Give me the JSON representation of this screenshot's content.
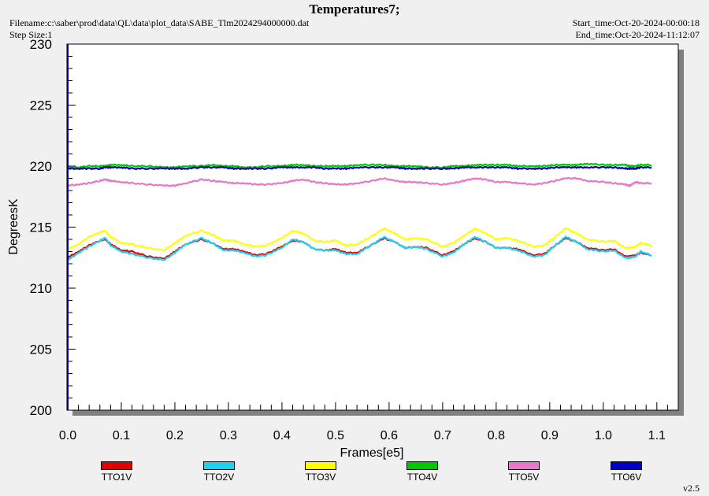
{
  "header": {
    "title": "Temperatures7;",
    "filename": "Filename:c:\\saber\\prod\\data\\QL\\data\\plot_data\\SABE_Tlm2024294000000.dat",
    "step_size": "Step Size:1",
    "start_time": "Start_time:Oct-20-2024-00:00:18",
    "end_time": "End_time:Oct-20-2024-11:12:07"
  },
  "version": "v2.5",
  "colors": {
    "background": "#f0f0f0",
    "plot_bg": "#ffffff",
    "shadow": "#808080",
    "axis": "#00008b"
  },
  "chart_data": {
    "type": "line",
    "title": "Temperatures7;",
    "xlabel": "Frames[e5]",
    "ylabel": "DegreesK",
    "xlim": [
      0.0,
      1.14
    ],
    "ylim": [
      200,
      230
    ],
    "xticks": [
      "0.0",
      "0.1",
      "0.2",
      "0.3",
      "0.4",
      "0.5",
      "0.6",
      "0.7",
      "0.8",
      "0.9",
      "1.0",
      "1.1"
    ],
    "yticks": [
      "200",
      "205",
      "210",
      "215",
      "220",
      "225",
      "230"
    ],
    "grid": false,
    "legend_position": "bottom",
    "x": [
      0.0,
      0.02,
      0.04,
      0.06,
      0.07,
      0.08,
      0.1,
      0.12,
      0.15,
      0.18,
      0.2,
      0.22,
      0.25,
      0.27,
      0.29,
      0.31,
      0.33,
      0.35,
      0.37,
      0.4,
      0.42,
      0.44,
      0.46,
      0.48,
      0.5,
      0.52,
      0.54,
      0.57,
      0.59,
      0.61,
      0.63,
      0.65,
      0.67,
      0.7,
      0.72,
      0.74,
      0.76,
      0.78,
      0.8,
      0.82,
      0.84,
      0.87,
      0.89,
      0.91,
      0.93,
      0.95,
      0.97,
      1.0,
      1.02,
      1.04,
      1.05,
      1.06,
      1.07,
      1.09
    ],
    "series": [
      {
        "name": "TTO1V",
        "color": "#e00000",
        "values": [
          212.5,
          213.0,
          213.5,
          213.9,
          214.0,
          213.6,
          213.1,
          213.0,
          212.6,
          212.4,
          213.0,
          213.6,
          214.0,
          213.7,
          213.2,
          213.2,
          213.0,
          212.7,
          212.8,
          213.4,
          213.9,
          213.8,
          213.2,
          213.1,
          213.2,
          212.9,
          212.9,
          213.6,
          214.1,
          213.8,
          213.3,
          213.4,
          213.3,
          212.7,
          213.0,
          213.6,
          214.1,
          213.8,
          213.3,
          213.3,
          213.2,
          212.7,
          212.8,
          213.5,
          214.1,
          213.8,
          213.3,
          213.1,
          213.2,
          212.6,
          212.6,
          212.7,
          212.9,
          212.7
        ]
      },
      {
        "name": "TTO2V",
        "color": "#20d0f0",
        "values": [
          212.3,
          212.9,
          213.4,
          213.9,
          214.1,
          213.5,
          213.0,
          212.8,
          212.5,
          212.3,
          212.9,
          213.6,
          214.1,
          213.7,
          213.1,
          213.1,
          212.9,
          212.6,
          212.7,
          213.3,
          214.0,
          213.8,
          213.2,
          213.1,
          213.1,
          212.8,
          212.8,
          213.6,
          214.2,
          213.8,
          213.3,
          213.4,
          213.2,
          212.6,
          212.9,
          213.6,
          214.2,
          213.8,
          213.3,
          213.3,
          213.1,
          212.6,
          212.7,
          213.5,
          214.2,
          213.8,
          213.2,
          213.0,
          213.1,
          212.5,
          212.5,
          212.6,
          213.0,
          212.7
        ]
      },
      {
        "name": "TTO3V",
        "color": "#ffff00",
        "values": [
          213.2,
          213.6,
          214.2,
          214.6,
          214.7,
          214.2,
          213.7,
          213.6,
          213.3,
          213.1,
          213.7,
          214.3,
          214.7,
          214.4,
          213.9,
          213.9,
          213.6,
          213.4,
          213.5,
          214.1,
          214.7,
          214.5,
          213.9,
          213.8,
          213.9,
          213.5,
          213.6,
          214.3,
          214.9,
          214.5,
          214.0,
          214.1,
          214.0,
          213.4,
          213.7,
          214.3,
          214.9,
          214.5,
          214.0,
          214.1,
          213.9,
          213.4,
          213.5,
          214.2,
          214.9,
          214.5,
          214.0,
          213.8,
          213.9,
          213.3,
          213.3,
          213.4,
          213.7,
          213.5
        ]
      },
      {
        "name": "TTO4V",
        "color": "#00c800",
        "values": [
          219.9,
          219.9,
          220.0,
          220.0,
          220.0,
          220.1,
          220.1,
          220.0,
          220.0,
          219.9,
          219.9,
          220.0,
          220.0,
          220.1,
          220.0,
          220.0,
          219.9,
          219.9,
          220.0,
          220.0,
          220.1,
          220.1,
          220.0,
          220.0,
          220.0,
          220.0,
          220.1,
          220.1,
          220.1,
          220.0,
          220.0,
          220.0,
          219.9,
          219.9,
          220.0,
          220.0,
          220.1,
          220.1,
          220.1,
          220.1,
          220.0,
          220.0,
          220.0,
          220.1,
          220.1,
          220.1,
          220.2,
          220.1,
          220.1,
          220.1,
          220.0,
          220.0,
          220.1,
          220.1
        ]
      },
      {
        "name": "TTO5V",
        "color": "#e878c8",
        "values": [
          218.4,
          218.5,
          218.6,
          218.8,
          218.9,
          218.8,
          218.7,
          218.6,
          218.5,
          218.4,
          218.4,
          218.6,
          218.9,
          218.8,
          218.7,
          218.6,
          218.6,
          218.5,
          218.5,
          218.6,
          218.8,
          218.9,
          218.7,
          218.6,
          218.5,
          218.5,
          218.6,
          218.8,
          219.0,
          218.8,
          218.7,
          218.7,
          218.6,
          218.5,
          218.6,
          218.8,
          219.0,
          218.9,
          218.7,
          218.7,
          218.6,
          218.5,
          218.6,
          218.8,
          219.0,
          219.0,
          218.8,
          218.7,
          218.6,
          218.5,
          218.4,
          218.7,
          218.6,
          218.6
        ]
      },
      {
        "name": "TTO6V",
        "color": "#0000c8",
        "values": [
          219.8,
          219.8,
          219.8,
          219.8,
          219.9,
          219.9,
          219.9,
          219.8,
          219.8,
          219.8,
          219.8,
          219.8,
          219.9,
          219.9,
          219.9,
          219.8,
          219.8,
          219.8,
          219.8,
          219.9,
          219.9,
          219.9,
          219.9,
          219.8,
          219.8,
          219.8,
          219.9,
          219.9,
          219.9,
          219.9,
          219.8,
          219.8,
          219.8,
          219.8,
          219.8,
          219.9,
          219.9,
          219.9,
          219.9,
          219.9,
          219.8,
          219.8,
          219.8,
          219.9,
          219.9,
          219.9,
          219.9,
          219.9,
          219.9,
          219.8,
          219.8,
          219.8,
          219.9,
          219.9
        ]
      }
    ]
  }
}
